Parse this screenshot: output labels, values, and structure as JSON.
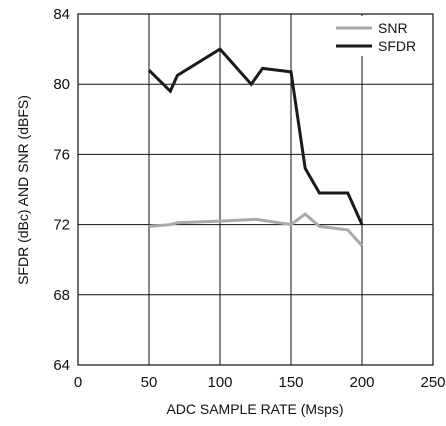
{
  "chart_data": {
    "type": "line",
    "title": "",
    "xlabel": "ADC SAMPLE RATE (Msps)",
    "ylabel": "SFDR (dBc) AND SNR (dBFS)",
    "xlim": [
      0,
      250
    ],
    "ylim": [
      64,
      84
    ],
    "x_ticks": [
      0,
      50,
      100,
      150,
      200,
      250
    ],
    "y_ticks": [
      64,
      68,
      72,
      76,
      80,
      84
    ],
    "grid": true,
    "legend_position": "top-right",
    "series": [
      {
        "name": "SNR",
        "color": "#aaaaaa",
        "x": [
          50,
          65,
          70,
          100,
          125,
          150,
          160,
          170,
          190,
          200
        ],
        "y": [
          71.9,
          72.0,
          72.1,
          72.2,
          72.3,
          72.0,
          72.6,
          71.9,
          71.7,
          70.8
        ]
      },
      {
        "name": "SFDR",
        "color": "#1a1a1a",
        "x": [
          50,
          65,
          70,
          100,
          122,
          130,
          150,
          160,
          170,
          190,
          200
        ],
        "y": [
          80.8,
          79.6,
          80.5,
          82.0,
          80.0,
          80.9,
          80.7,
          75.2,
          73.8,
          73.8,
          72.0
        ]
      }
    ]
  }
}
